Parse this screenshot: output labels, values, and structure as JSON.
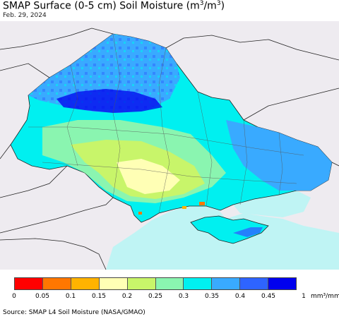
{
  "header": {
    "title_prefix": "SMAP Surface (0-5 cm) Soil Moisture (m",
    "title_sup1": "3",
    "title_mid": "/m",
    "title_sup2": "3",
    "title_suffix": ")",
    "date": "Feb. 29, 2024"
  },
  "colors": {
    "land_outside": "#eeebf0",
    "sea": "#bff4f4",
    "border": "#222222"
  },
  "legend": {
    "colors": [
      "#ff0000",
      "#ff7700",
      "#ffb300",
      "#ffffb5",
      "#c8f56a",
      "#8af5b0",
      "#00f0f0",
      "#39aaff",
      "#2e64ff",
      "#0000ee"
    ],
    "ticks": [
      "0",
      "0.05",
      "0.1",
      "0.15",
      "0.2",
      "0.25",
      "0.3",
      "0.35",
      "0.4",
      "0.45",
      "1"
    ],
    "unit": "mm³/mm³"
  },
  "source": "Source: SMAP L4 Soil Moisture (NASA/GMAO)"
}
